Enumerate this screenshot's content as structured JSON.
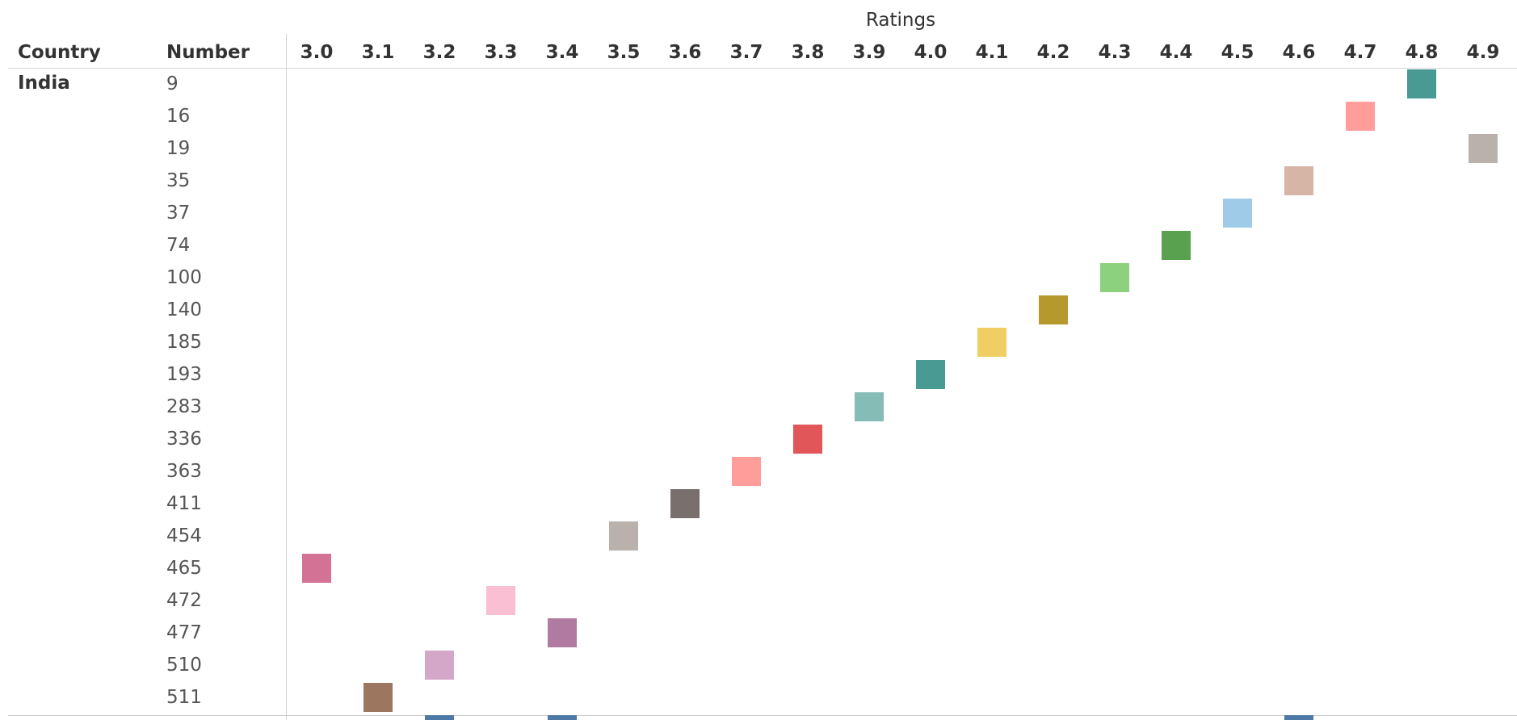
{
  "chart_data": {
    "type": "heatmap",
    "title": "Ratings",
    "columns_header": "Ratings",
    "row_headers": [
      "Country",
      "Number"
    ],
    "country": "India",
    "x_categories": [
      "3.0",
      "3.1",
      "3.2",
      "3.3",
      "3.4",
      "3.5",
      "3.6",
      "3.7",
      "3.8",
      "3.9",
      "4.0",
      "4.1",
      "4.2",
      "4.3",
      "4.4",
      "4.5",
      "4.6",
      "4.7",
      "4.8",
      "4.9"
    ],
    "rows": [
      {
        "number": "9",
        "rating": "4.8",
        "color": "#4a9a94"
      },
      {
        "number": "16",
        "rating": "4.7",
        "color": "#ff9d9a"
      },
      {
        "number": "19",
        "rating": "4.9",
        "color": "#bab0ac"
      },
      {
        "number": "35",
        "rating": "4.6",
        "color": "#d7b5a6"
      },
      {
        "number": "37",
        "rating": "4.5",
        "color": "#a0cbe8"
      },
      {
        "number": "74",
        "rating": "4.4",
        "color": "#59a14f"
      },
      {
        "number": "100",
        "rating": "4.3",
        "color": "#8cd17d"
      },
      {
        "number": "140",
        "rating": "4.2",
        "color": "#b6992d"
      },
      {
        "number": "185",
        "rating": "4.1",
        "color": "#f1ce63"
      },
      {
        "number": "193",
        "rating": "4.0",
        "color": "#4a9a94"
      },
      {
        "number": "283",
        "rating": "3.9",
        "color": "#86bcb6"
      },
      {
        "number": "336",
        "rating": "3.8",
        "color": "#e15759"
      },
      {
        "number": "363",
        "rating": "3.7",
        "color": "#ff9d9a"
      },
      {
        "number": "411",
        "rating": "3.6",
        "color": "#79706e"
      },
      {
        "number": "454",
        "rating": "3.5",
        "color": "#bab0ac"
      },
      {
        "number": "465",
        "rating": "3.0",
        "color": "#d37295"
      },
      {
        "number": "472",
        "rating": "3.3",
        "color": "#fabfd2"
      },
      {
        "number": "477",
        "rating": "3.4",
        "color": "#b07aa1"
      },
      {
        "number": "510",
        "rating": "3.2",
        "color": "#d4a6c8"
      },
      {
        "number": "511",
        "rating": "3.1",
        "color": "#9d7660"
      }
    ],
    "partial_next_row_marks": [
      {
        "rating": "3.2",
        "color": "#4e79a7"
      },
      {
        "rating": "3.4",
        "color": "#4e79a7"
      },
      {
        "rating": "4.6",
        "color": "#4e79a7"
      }
    ]
  }
}
